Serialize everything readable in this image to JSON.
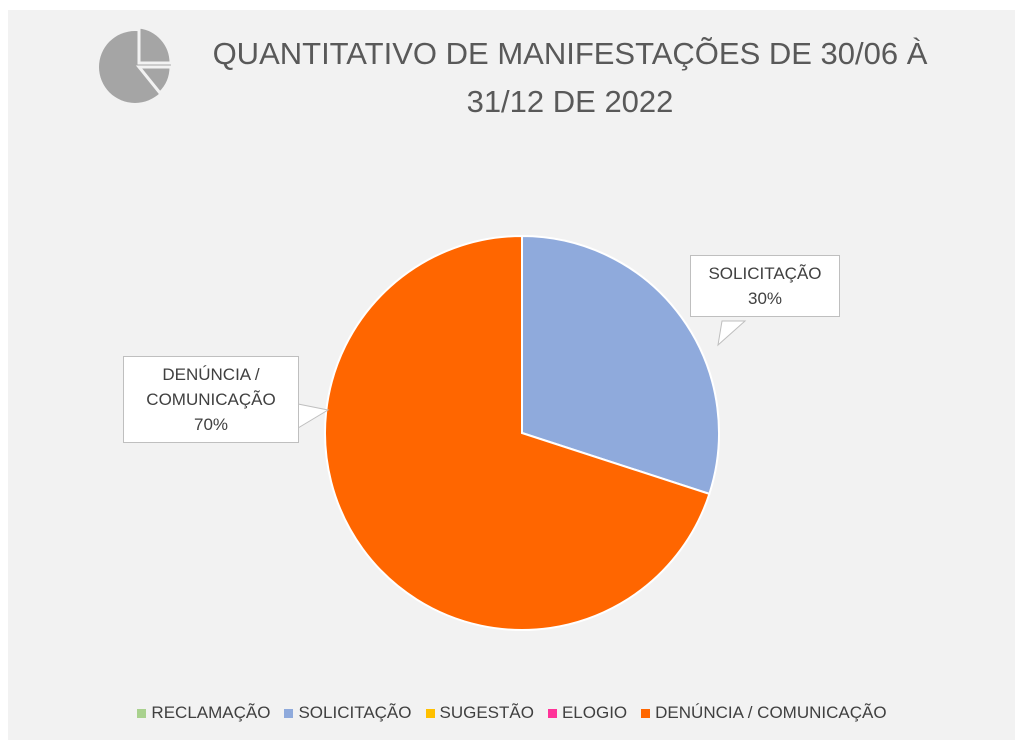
{
  "chart_data": {
    "type": "pie",
    "title": "QUANTITATIVO DE MANIFESTAÇÕES DE 30/06 À 31/12 DE 2022",
    "categories": [
      "RECLAMAÇÃO",
      "SOLICITAÇÃO",
      "SUGESTÃO",
      "ELOGIO",
      "DENÚNCIA / COMUNICAÇÃO"
    ],
    "values": [
      0,
      30,
      0,
      0,
      70
    ],
    "value_labels": [
      null,
      "30%",
      null,
      null,
      "70%"
    ],
    "colors": [
      "#a9d18e",
      "#8faadc",
      "#ffc000",
      "#ff3399",
      "#ff6600"
    ],
    "legend": "bottom"
  }
}
